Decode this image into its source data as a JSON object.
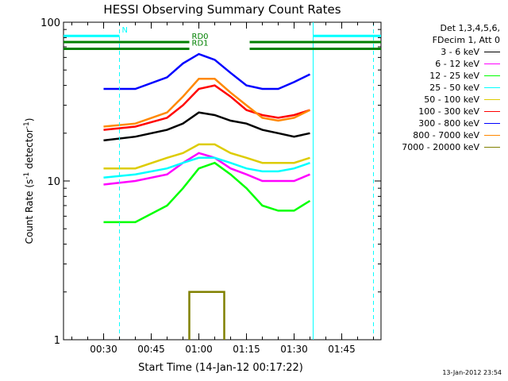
{
  "chart_data": {
    "type": "line",
    "title": "HESSI Observing Summary Count Rates",
    "xlabel": "Start Time (14-Jan-12 00:17:22)",
    "ylabel_main": "Count Rate (s",
    "ylabel_sup1": "-1",
    "ylabel_mid": " detector",
    "ylabel_sup2": "-1",
    "ylabel_end": ")",
    "yscale": "log",
    "ylim": [
      1,
      100
    ],
    "xlim": [
      "00:17:22",
      "01:57:22"
    ],
    "xticks": [
      "00:30",
      "00:45",
      "01:00",
      "01:15",
      "01:30",
      "01:45"
    ],
    "yticks": [
      "1",
      "10",
      "100"
    ],
    "grid": false,
    "legend_position": "right",
    "legend_header": [
      "Det 1,3,4,5,6,",
      "FDecim 1, Att 0"
    ],
    "timestamp": "13-Jan-2012 23:54",
    "series": [
      {
        "name": "3 - 6 keV",
        "color": "#000000",
        "points": [
          [
            "00:30",
            18
          ],
          [
            "00:40",
            19
          ],
          [
            "00:50",
            21
          ],
          [
            "00:55",
            23
          ],
          [
            "01:00",
            27
          ],
          [
            "01:05",
            26
          ],
          [
            "01:10",
            24
          ],
          [
            "01:15",
            23
          ],
          [
            "01:20",
            21
          ],
          [
            "01:25",
            20
          ],
          [
            "01:30",
            19
          ],
          [
            "01:35",
            20
          ]
        ]
      },
      {
        "name": "6 - 12 keV",
        "color": "#ff00ff",
        "points": [
          [
            "00:30",
            9.5
          ],
          [
            "00:40",
            10
          ],
          [
            "00:50",
            11
          ],
          [
            "00:55",
            13
          ],
          [
            "01:00",
            15
          ],
          [
            "01:05",
            14
          ],
          [
            "01:10",
            12
          ],
          [
            "01:15",
            11
          ],
          [
            "01:20",
            10
          ],
          [
            "01:25",
            10
          ],
          [
            "01:30",
            10
          ],
          [
            "01:35",
            11
          ]
        ]
      },
      {
        "name": "12 - 25 keV",
        "color": "#00ff00",
        "points": [
          [
            "00:30",
            5.5
          ],
          [
            "00:40",
            5.5
          ],
          [
            "00:50",
            7
          ],
          [
            "00:55",
            9
          ],
          [
            "01:00",
            12
          ],
          [
            "01:05",
            13
          ],
          [
            "01:10",
            11
          ],
          [
            "01:15",
            9
          ],
          [
            "01:20",
            7
          ],
          [
            "01:25",
            6.5
          ],
          [
            "01:30",
            6.5
          ],
          [
            "01:35",
            7.5
          ]
        ]
      },
      {
        "name": "25 - 50 keV",
        "color": "#00ffff",
        "points": [
          [
            "00:30",
            10.5
          ],
          [
            "00:40",
            11
          ],
          [
            "00:50",
            12
          ],
          [
            "00:55",
            13
          ],
          [
            "01:00",
            14
          ],
          [
            "01:05",
            14
          ],
          [
            "01:10",
            13
          ],
          [
            "01:15",
            12
          ],
          [
            "01:20",
            11.5
          ],
          [
            "01:25",
            11.5
          ],
          [
            "01:30",
            12
          ],
          [
            "01:35",
            13
          ]
        ]
      },
      {
        "name": "50 - 100 keV",
        "color": "#ddcc00",
        "points": [
          [
            "00:30",
            12
          ],
          [
            "00:40",
            12
          ],
          [
            "00:50",
            14
          ],
          [
            "00:55",
            15
          ],
          [
            "01:00",
            17
          ],
          [
            "01:05",
            17
          ],
          [
            "01:10",
            15
          ],
          [
            "01:15",
            14
          ],
          [
            "01:20",
            13
          ],
          [
            "01:25",
            13
          ],
          [
            "01:30",
            13
          ],
          [
            "01:35",
            14
          ]
        ]
      },
      {
        "name": "100 - 300 keV",
        "color": "#ff0000",
        "points": [
          [
            "00:30",
            21
          ],
          [
            "00:40",
            22
          ],
          [
            "00:50",
            25
          ],
          [
            "00:55",
            30
          ],
          [
            "01:00",
            38
          ],
          [
            "01:05",
            40
          ],
          [
            "01:10",
            34
          ],
          [
            "01:15",
            28
          ],
          [
            "01:20",
            26
          ],
          [
            "01:25",
            25
          ],
          [
            "01:30",
            26
          ],
          [
            "01:35",
            28
          ]
        ]
      },
      {
        "name": "300 - 800 keV",
        "color": "#0000ff",
        "points": [
          [
            "00:30",
            38
          ],
          [
            "00:40",
            38
          ],
          [
            "00:50",
            45
          ],
          [
            "00:55",
            55
          ],
          [
            "01:00",
            63
          ],
          [
            "01:05",
            58
          ],
          [
            "01:10",
            48
          ],
          [
            "01:15",
            40
          ],
          [
            "01:20",
            38
          ],
          [
            "01:25",
            38
          ],
          [
            "01:30",
            42
          ],
          [
            "01:35",
            47
          ]
        ]
      },
      {
        "name": "800 - 7000 keV",
        "color": "#ff8800",
        "points": [
          [
            "00:30",
            22
          ],
          [
            "00:40",
            23
          ],
          [
            "00:50",
            27
          ],
          [
            "00:55",
            34
          ],
          [
            "01:00",
            44
          ],
          [
            "01:05",
            44
          ],
          [
            "01:10",
            36
          ],
          [
            "01:15",
            30
          ],
          [
            "01:20",
            25
          ],
          [
            "01:25",
            24
          ],
          [
            "01:30",
            25
          ],
          [
            "01:35",
            28
          ]
        ]
      },
      {
        "name": "7000 - 20000 keV",
        "color": "#808000",
        "points": [
          [
            "00:57",
            1
          ],
          [
            "00:57",
            2
          ],
          [
            "01:02",
            2
          ],
          [
            "01:08",
            2
          ],
          [
            "01:08",
            1
          ]
        ]
      }
    ],
    "flags": {
      "N": {
        "label": "N",
        "color": "#00ffff",
        "level": 82,
        "intervals": [
          [
            "00:17:22",
            "00:35"
          ],
          [
            "01:36",
            "01:57:22"
          ]
        ]
      },
      "RD0": {
        "label": "RD0",
        "color": "#008000",
        "level": 75,
        "intervals": [
          [
            "00:17:22",
            "00:57"
          ],
          [
            "01:16",
            "01:57:22"
          ]
        ]
      },
      "RD1": {
        "label": "RD1",
        "color": "#008000",
        "level": 68,
        "intervals": [
          [
            "00:17:22",
            "00:57"
          ],
          [
            "01:16",
            "01:57:22"
          ]
        ]
      }
    },
    "vlines": [
      {
        "time": "00:35",
        "color": "#00ffff",
        "style": "dashed"
      },
      {
        "time": "01:36",
        "color": "#00ffff",
        "style": "solid"
      },
      {
        "time": "01:55",
        "color": "#00ffff",
        "style": "dashed"
      }
    ]
  }
}
